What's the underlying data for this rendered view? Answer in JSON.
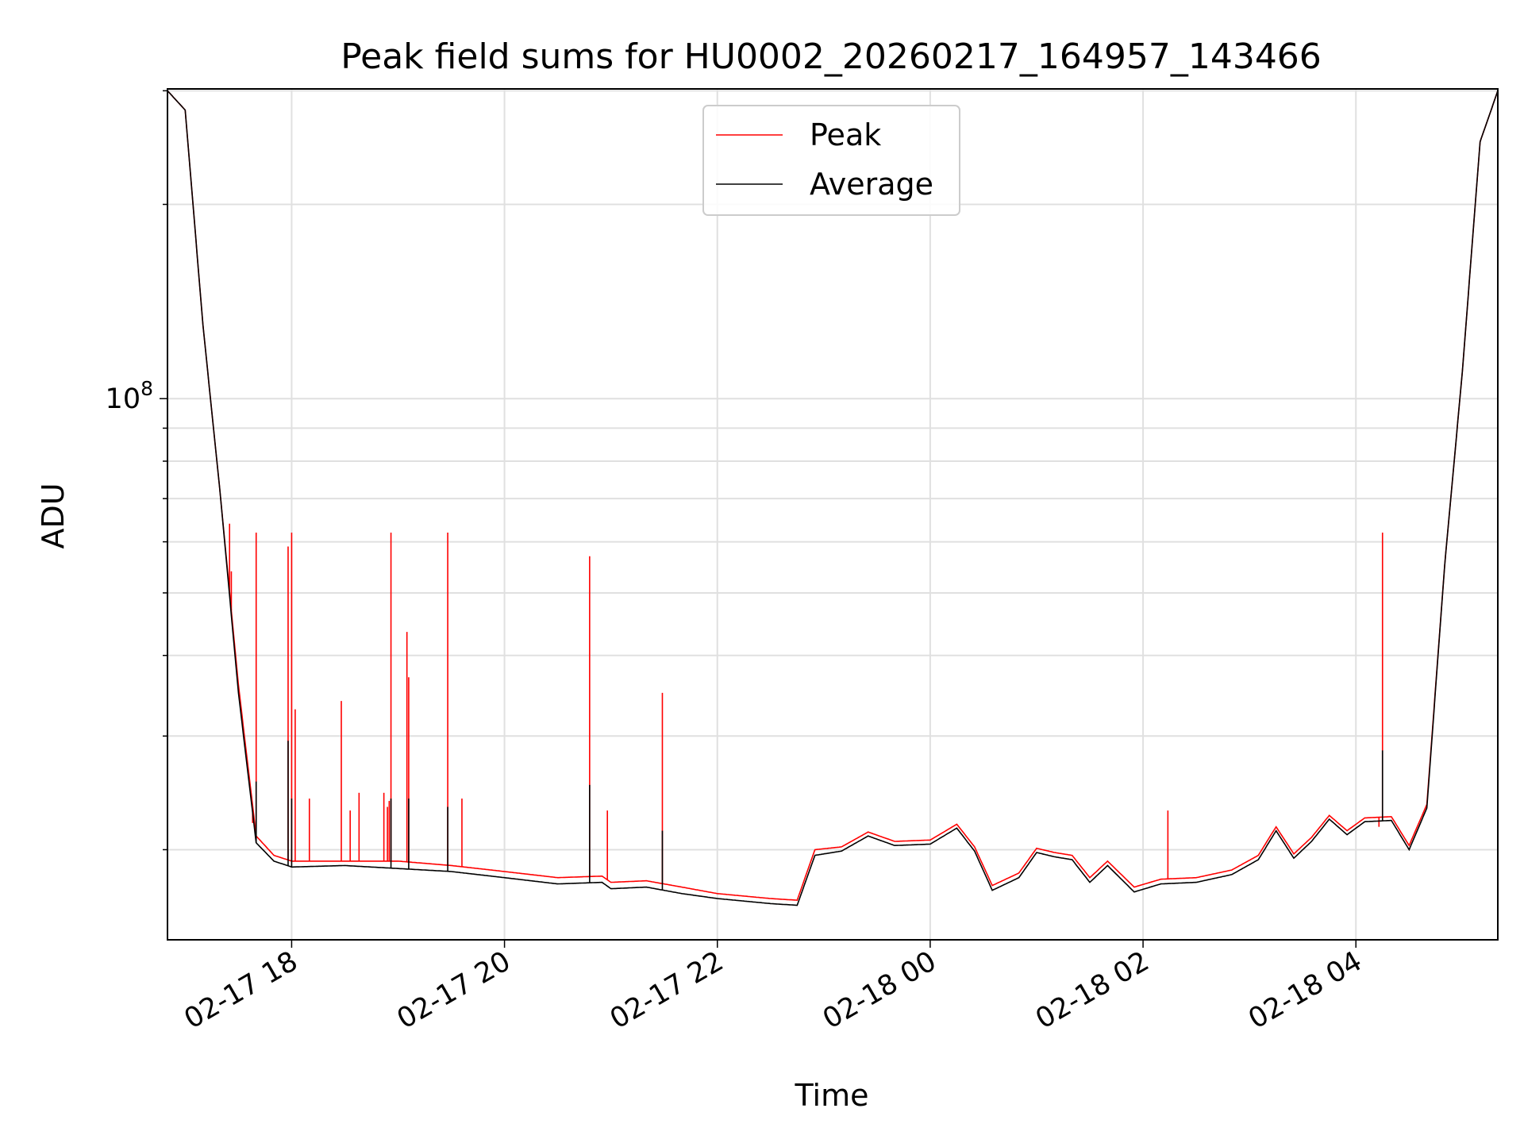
{
  "chart_data": {
    "type": "line",
    "title": "Peak field sums for HU0002_20260217_164957_143466",
    "xlabel": "Time",
    "ylabel": "ADU",
    "yscale": "log",
    "grid": true,
    "legend": "top-center",
    "xlim": [
      "2026-02-17 16:50",
      "2026-02-18 05:20"
    ],
    "ylim": [
      14500000,
      302000000
    ],
    "x_ticks": [
      {
        "label": "02-17 18",
        "t": "2026-02-17 18:00"
      },
      {
        "label": "02-17 20",
        "t": "2026-02-17 20:00"
      },
      {
        "label": "02-17 22",
        "t": "2026-02-17 22:00"
      },
      {
        "label": "02-18 00",
        "t": "2026-02-18 00:00"
      },
      {
        "label": "02-18 02",
        "t": "2026-02-18 02:00"
      },
      {
        "label": "02-18 04",
        "t": "2026-02-18 04:00"
      }
    ],
    "y_major_ticks": [
      {
        "value": 100000000,
        "base": "10",
        "exp": "8"
      }
    ],
    "colors": {
      "peak": "#ff0000",
      "average": "#000000"
    },
    "series": [
      {
        "name": "Peak",
        "color": "#ff0000",
        "points": [
          [
            "2026-02-17 16:50",
            300000000
          ],
          [
            "2026-02-17 17:00",
            280000000
          ],
          [
            "2026-02-17 17:10",
            130000000
          ],
          [
            "2026-02-17 17:20",
            70000000
          ],
          [
            "2026-02-17 17:30",
            36000000
          ],
          [
            "2026-02-17 17:40",
            21000000
          ],
          [
            "2026-02-17 17:50",
            19600000
          ],
          [
            "2026-02-17 18:00",
            19200000
          ],
          [
            "2026-02-17 18:30",
            19200000
          ],
          [
            "2026-02-17 19:00",
            19200000
          ],
          [
            "2026-02-17 19:30",
            18900000
          ],
          [
            "2026-02-17 20:00",
            18500000
          ],
          [
            "2026-02-17 20:30",
            18100000
          ],
          [
            "2026-02-17 20:55",
            18200000
          ],
          [
            "2026-02-17 21:00",
            17800000
          ],
          [
            "2026-02-17 21:20",
            17900000
          ],
          [
            "2026-02-17 21:40",
            17500000
          ],
          [
            "2026-02-17 22:00",
            17100000
          ],
          [
            "2026-02-17 22:30",
            16800000
          ],
          [
            "2026-02-17 22:45",
            16700000
          ],
          [
            "2026-02-17 22:55",
            20000000
          ],
          [
            "2026-02-17 23:10",
            20200000
          ],
          [
            "2026-02-17 23:25",
            21300000
          ],
          [
            "2026-02-17 23:40",
            20600000
          ],
          [
            "2026-02-18 00:00",
            20700000
          ],
          [
            "2026-02-18 00:15",
            21900000
          ],
          [
            "2026-02-18 00:25",
            20200000
          ],
          [
            "2026-02-18 00:35",
            17600000
          ],
          [
            "2026-02-18 00:50",
            18400000
          ],
          [
            "2026-02-18 01:00",
            20100000
          ],
          [
            "2026-02-18 01:10",
            19800000
          ],
          [
            "2026-02-18 01:20",
            19600000
          ],
          [
            "2026-02-18 01:30",
            18100000
          ],
          [
            "2026-02-18 01:40",
            19200000
          ],
          [
            "2026-02-18 01:55",
            17500000
          ],
          [
            "2026-02-18 02:10",
            18000000
          ],
          [
            "2026-02-18 02:30",
            18100000
          ],
          [
            "2026-02-18 02:50",
            18600000
          ],
          [
            "2026-02-18 03:05",
            19600000
          ],
          [
            "2026-02-18 03:15",
            21700000
          ],
          [
            "2026-02-18 03:25",
            19700000
          ],
          [
            "2026-02-18 03:35",
            20900000
          ],
          [
            "2026-02-18 03:45",
            22600000
          ],
          [
            "2026-02-18 03:55",
            21400000
          ],
          [
            "2026-02-18 04:05",
            22400000
          ],
          [
            "2026-02-18 04:20",
            22500000
          ],
          [
            "2026-02-18 04:30",
            20300000
          ],
          [
            "2026-02-18 04:40",
            23500000
          ],
          [
            "2026-02-18 04:50",
            55000000
          ],
          [
            "2026-02-18 05:00",
            110000000
          ],
          [
            "2026-02-18 05:10",
            250000000
          ],
          [
            "2026-02-18 05:20",
            300000000
          ]
        ],
        "spikes": [
          [
            "2026-02-17 17:25",
            64000000
          ],
          [
            "2026-02-17 17:26",
            54000000
          ],
          [
            "2026-02-17 17:31",
            34000000
          ],
          [
            "2026-02-17 17:38",
            22000000
          ],
          [
            "2026-02-17 17:40",
            62000000
          ],
          [
            "2026-02-17 17:58",
            59000000
          ],
          [
            "2026-02-17 18:00",
            62000000
          ],
          [
            "2026-02-17 18:02",
            33000000
          ],
          [
            "2026-02-17 18:10",
            24000000
          ],
          [
            "2026-02-17 18:28",
            34000000
          ],
          [
            "2026-02-17 18:33",
            23000000
          ],
          [
            "2026-02-17 18:38",
            24500000
          ],
          [
            "2026-02-17 18:52",
            24500000
          ],
          [
            "2026-02-17 18:54",
            23300000
          ],
          [
            "2026-02-17 18:55",
            23800000
          ],
          [
            "2026-02-17 18:56",
            62000000
          ],
          [
            "2026-02-17 19:05",
            43500000
          ],
          [
            "2026-02-17 19:06",
            37000000
          ],
          [
            "2026-02-17 19:28",
            62000000
          ],
          [
            "2026-02-17 19:36",
            24000000
          ],
          [
            "2026-02-17 20:48",
            57000000
          ],
          [
            "2026-02-17 20:58",
            23000000
          ],
          [
            "2026-02-17 21:29",
            35000000
          ],
          [
            "2026-02-18 02:14",
            23000000
          ],
          [
            "2026-02-18 04:15",
            62000000
          ],
          [
            "2026-02-18 04:13",
            21700000
          ]
        ]
      },
      {
        "name": "Average",
        "color": "#000000",
        "points": [
          [
            "2026-02-17 16:50",
            300000000
          ],
          [
            "2026-02-17 17:00",
            280000000
          ],
          [
            "2026-02-17 17:10",
            130000000
          ],
          [
            "2026-02-17 17:20",
            70000000
          ],
          [
            "2026-02-17 17:30",
            35000000
          ],
          [
            "2026-02-17 17:40",
            20500000
          ],
          [
            "2026-02-17 17:50",
            19200000
          ],
          [
            "2026-02-17 18:00",
            18800000
          ],
          [
            "2026-02-17 18:30",
            18900000
          ],
          [
            "2026-02-17 19:00",
            18700000
          ],
          [
            "2026-02-17 19:30",
            18500000
          ],
          [
            "2026-02-17 20:00",
            18100000
          ],
          [
            "2026-02-17 20:30",
            17700000
          ],
          [
            "2026-02-17 20:55",
            17800000
          ],
          [
            "2026-02-17 21:00",
            17400000
          ],
          [
            "2026-02-17 21:20",
            17500000
          ],
          [
            "2026-02-17 21:40",
            17100000
          ],
          [
            "2026-02-17 22:00",
            16800000
          ],
          [
            "2026-02-17 22:30",
            16500000
          ],
          [
            "2026-02-17 22:45",
            16400000
          ],
          [
            "2026-02-17 22:55",
            19600000
          ],
          [
            "2026-02-17 23:10",
            19900000
          ],
          [
            "2026-02-17 23:25",
            21000000
          ],
          [
            "2026-02-17 23:40",
            20300000
          ],
          [
            "2026-02-18 00:00",
            20400000
          ],
          [
            "2026-02-18 00:15",
            21600000
          ],
          [
            "2026-02-18 00:25",
            19900000
          ],
          [
            "2026-02-18 00:35",
            17300000
          ],
          [
            "2026-02-18 00:50",
            18100000
          ],
          [
            "2026-02-18 01:00",
            19800000
          ],
          [
            "2026-02-18 01:10",
            19500000
          ],
          [
            "2026-02-18 01:20",
            19300000
          ],
          [
            "2026-02-18 01:30",
            17800000
          ],
          [
            "2026-02-18 01:40",
            18900000
          ],
          [
            "2026-02-18 01:55",
            17200000
          ],
          [
            "2026-02-18 02:10",
            17700000
          ],
          [
            "2026-02-18 02:30",
            17800000
          ],
          [
            "2026-02-18 02:50",
            18300000
          ],
          [
            "2026-02-18 03:05",
            19300000
          ],
          [
            "2026-02-18 03:15",
            21400000
          ],
          [
            "2026-02-18 03:25",
            19400000
          ],
          [
            "2026-02-18 03:35",
            20600000
          ],
          [
            "2026-02-18 03:45",
            22300000
          ],
          [
            "2026-02-18 03:55",
            21100000
          ],
          [
            "2026-02-18 04:05",
            22100000
          ],
          [
            "2026-02-18 04:20",
            22200000
          ],
          [
            "2026-02-18 04:30",
            20000000
          ],
          [
            "2026-02-18 04:40",
            23200000
          ],
          [
            "2026-02-18 04:50",
            55000000
          ],
          [
            "2026-02-18 05:00",
            110000000
          ],
          [
            "2026-02-18 05:10",
            250000000
          ],
          [
            "2026-02-18 05:20",
            300000000
          ]
        ],
        "spikes": [
          [
            "2026-02-17 17:58",
            29500000
          ],
          [
            "2026-02-17 18:00",
            24000000
          ],
          [
            "2026-02-17 17:40",
            25500000
          ],
          [
            "2026-02-17 18:56",
            24000000
          ],
          [
            "2026-02-17 19:06",
            24000000
          ],
          [
            "2026-02-17 19:28",
            23300000
          ],
          [
            "2026-02-17 20:48",
            25200000
          ],
          [
            "2026-02-17 21:29",
            21400000
          ],
          [
            "2026-02-18 04:15",
            28500000
          ]
        ]
      }
    ]
  }
}
